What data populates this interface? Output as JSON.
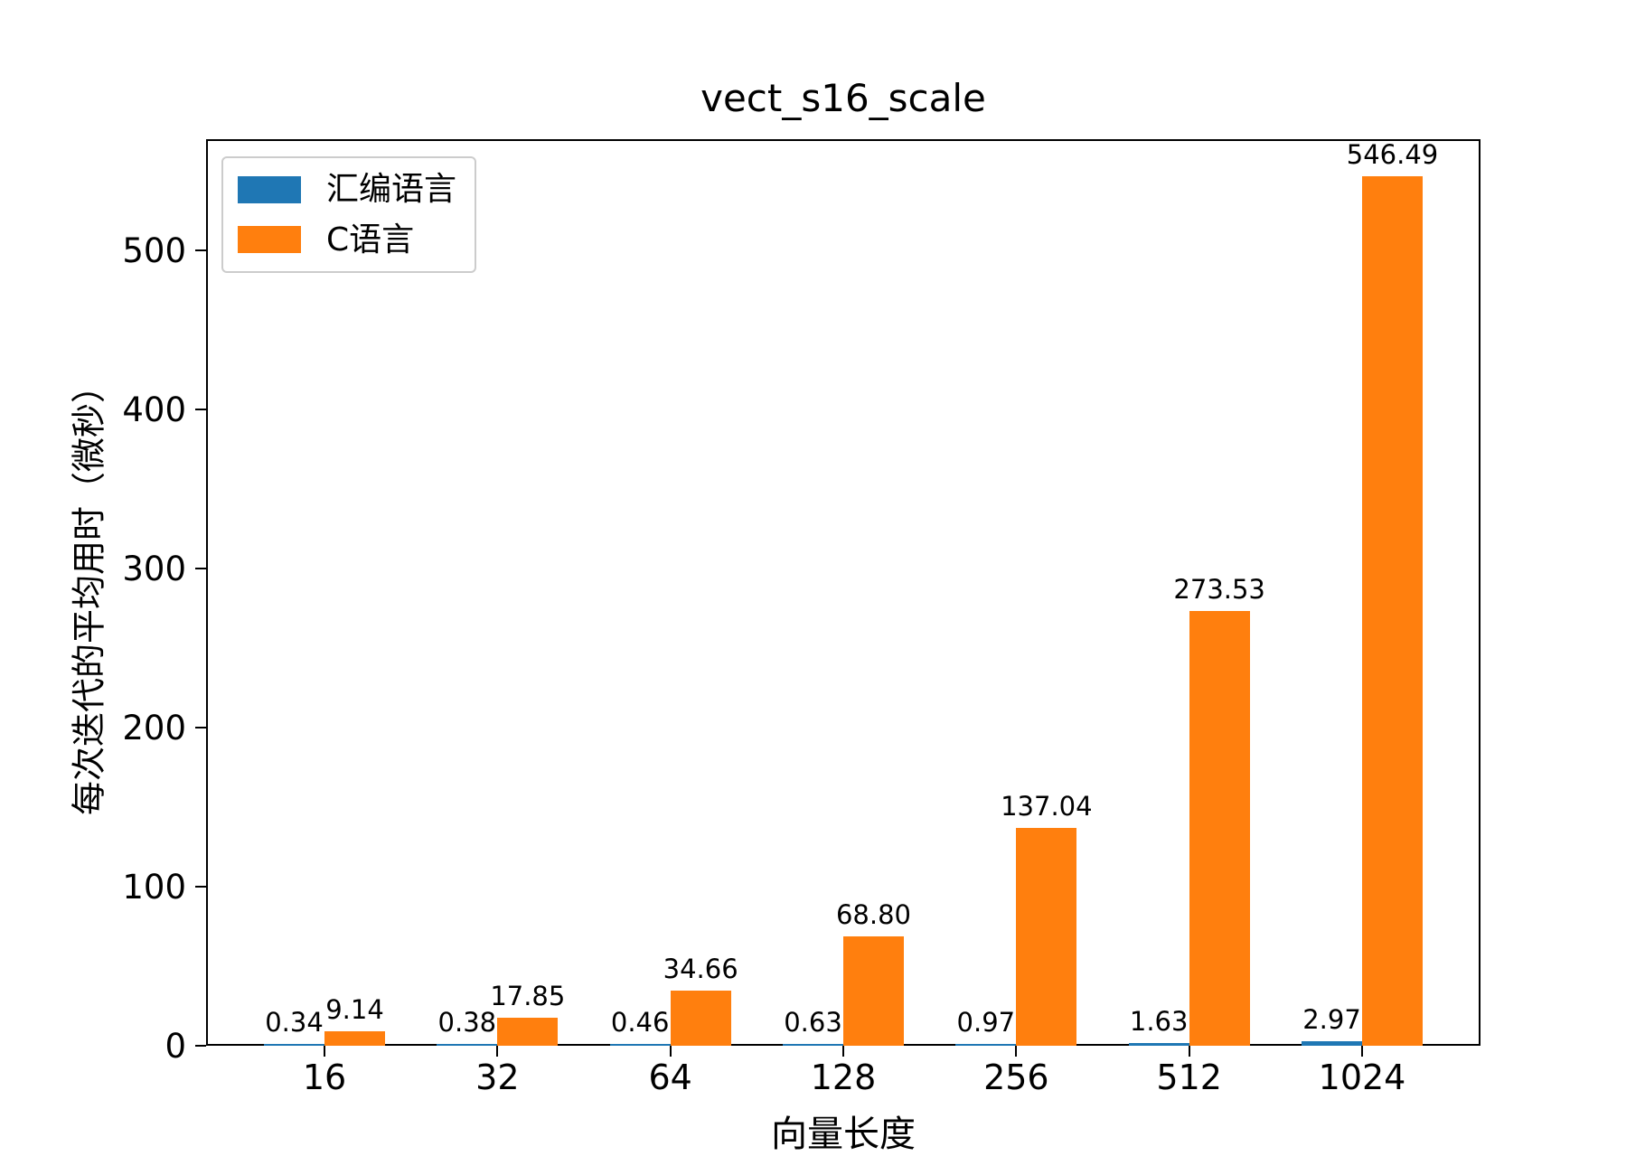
{
  "chart_data": {
    "type": "bar",
    "title": "vect_s16_scale",
    "xlabel": "向量长度",
    "ylabel": "每次迭代的平均用时（微秒）",
    "categories": [
      "16",
      "32",
      "64",
      "128",
      "256",
      "512",
      "1024"
    ],
    "series": [
      {
        "name": "汇编语言",
        "color": "#1f77b4",
        "values": [
          0.34,
          0.38,
          0.46,
          0.63,
          0.97,
          1.63,
          2.97
        ],
        "labels": [
          "0.34",
          "0.38",
          "0.46",
          "0.63",
          "0.97",
          "1.63",
          "2.97"
        ]
      },
      {
        "name": "C语言",
        "color": "#ff7f0e",
        "values": [
          9.14,
          17.85,
          34.66,
          68.8,
          137.04,
          273.53,
          546.49
        ],
        "labels": [
          "9.14",
          "17.85",
          "34.66",
          "68.80",
          "137.04",
          "273.53",
          "546.49"
        ]
      }
    ],
    "ylim": [
      0,
      570
    ],
    "yticks": [
      0,
      100,
      200,
      300,
      400,
      500
    ],
    "grid": false,
    "legend_position": "upper left",
    "bar_value_labels": true,
    "spine_color": "#000000",
    "background_color": "#ffffff"
  }
}
